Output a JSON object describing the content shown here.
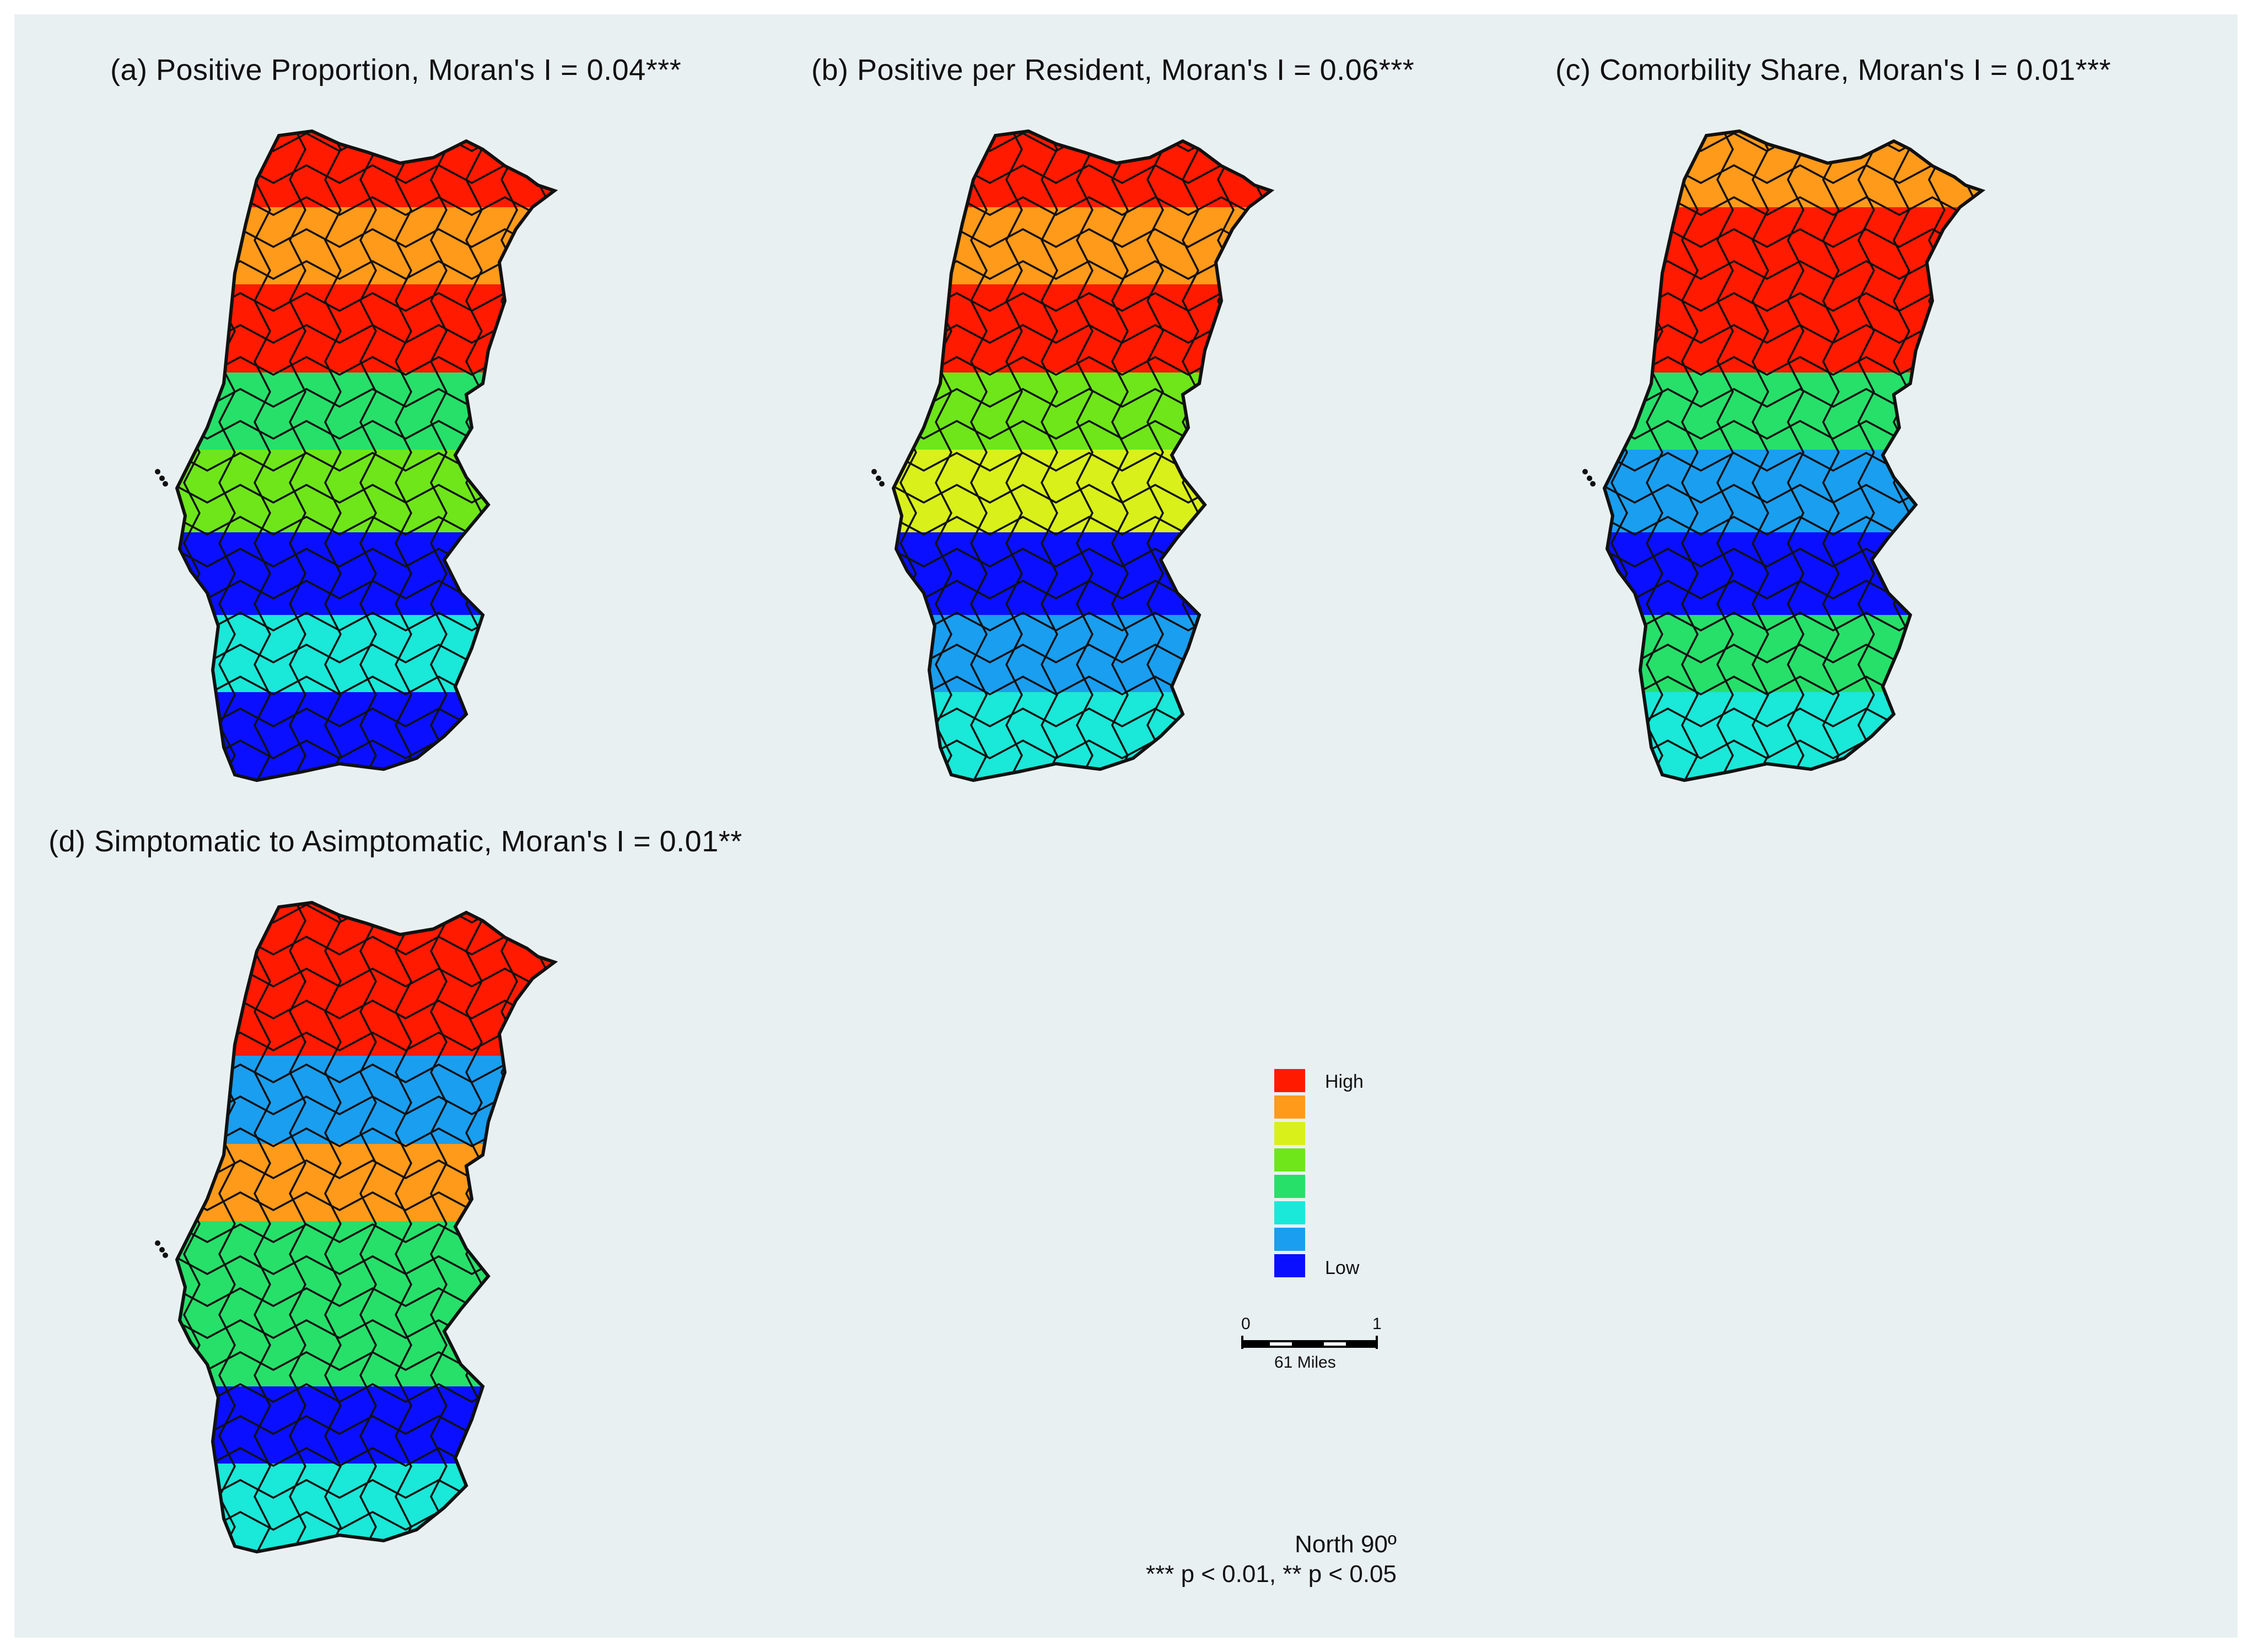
{
  "panels": [
    {
      "id": "a",
      "title": "(a) Positive Proportion, Moran's I = 0.04***"
    },
    {
      "id": "b",
      "title": "(b) Positive per Resident, Moran's I = 0.06***"
    },
    {
      "id": "c",
      "title": "(c) Comorbility Share, Moran's I = 0.01***"
    },
    {
      "id": "d",
      "title": "(d) Simptomatic to Asimptomatic, Moran's I = 0.01**"
    }
  ],
  "legend": {
    "high_label": "High",
    "low_label": "Low",
    "colors": [
      "#ff1a00",
      "#ff9a1a",
      "#d9f01a",
      "#6ee61a",
      "#26e06a",
      "#1ae8d8",
      "#1a9ef0",
      "#0a10ff"
    ]
  },
  "scale_bar": {
    "start": "0",
    "end": "1",
    "unit": "61 Miles"
  },
  "north_text": "North 90º",
  "significance_note": "*** p < 0.01, ** p < 0.05",
  "map_layers": {
    "a": [
      "#ff1a00",
      "#ff9a1a",
      "#ff1a00",
      "#26e06a",
      "#6ee61a",
      "#0a10ff",
      "#1ae8d8",
      "#0a10ff"
    ],
    "b": [
      "#ff1a00",
      "#ff9a1a",
      "#ff1a00",
      "#6ee61a",
      "#d9f01a",
      "#0a10ff",
      "#1a9ef0",
      "#1ae8d8"
    ],
    "c": [
      "#ff9a1a",
      "#ff1a00",
      "#ff1a00",
      "#26e06a",
      "#1a9ef0",
      "#0a10ff",
      "#26e06a",
      "#1ae8d8"
    ],
    "d": [
      "#ff1a00",
      "#ff1a00",
      "#1a9ef0",
      "#ff9a1a",
      "#26e06a",
      "#26e06a",
      "#0a10ff",
      "#1ae8d8"
    ]
  }
}
